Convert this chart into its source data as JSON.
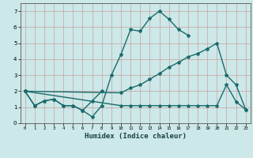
{
  "xlabel": "Humidex (Indice chaleur)",
  "xlim": [
    -0.5,
    23.5
  ],
  "ylim": [
    0,
    7.5
  ],
  "xticks": [
    0,
    1,
    2,
    3,
    4,
    5,
    6,
    7,
    8,
    9,
    10,
    11,
    12,
    13,
    14,
    15,
    16,
    17,
    18,
    19,
    20,
    21,
    22,
    23
  ],
  "yticks": [
    0,
    1,
    2,
    3,
    4,
    5,
    6,
    7
  ],
  "bg_color": "#cce8e8",
  "grid_color": "#aacccc",
  "line_color": "#1a6b6b",
  "line_width": 1.0,
  "marker_size": 3.0,
  "series": [
    {
      "x": [
        0,
        1,
        2,
        3,
        4,
        5,
        6,
        7,
        8,
        9,
        10,
        11,
        12,
        13,
        14,
        15,
        16,
        17
      ],
      "y": [
        2.0,
        1.1,
        1.4,
        1.5,
        1.1,
        1.1,
        0.8,
        0.4,
        1.1,
        3.0,
        4.3,
        5.85,
        5.75,
        6.55,
        7.0,
        6.5,
        5.85,
        5.5
      ]
    },
    {
      "x": [
        0,
        1,
        2,
        3,
        4,
        5,
        6,
        7,
        8
      ],
      "y": [
        2.0,
        1.1,
        1.4,
        1.5,
        1.1,
        1.1,
        0.8,
        1.4,
        2.0
      ]
    },
    {
      "x": [
        0,
        10,
        11,
        12,
        13,
        14,
        15,
        16,
        17,
        18,
        19,
        20,
        21,
        22,
        23
      ],
      "y": [
        2.0,
        1.1,
        1.1,
        1.1,
        1.1,
        1.1,
        1.1,
        1.1,
        1.1,
        1.1,
        1.1,
        1.1,
        2.4,
        1.35,
        0.85
      ]
    },
    {
      "x": [
        0,
        10,
        11,
        12,
        13,
        14,
        15,
        16,
        17,
        18,
        19,
        20,
        21,
        22,
        23
      ],
      "y": [
        2.0,
        1.9,
        2.2,
        2.4,
        2.75,
        3.1,
        3.5,
        3.8,
        4.15,
        4.35,
        4.65,
        5.0,
        3.0,
        2.4,
        0.85
      ]
    }
  ]
}
